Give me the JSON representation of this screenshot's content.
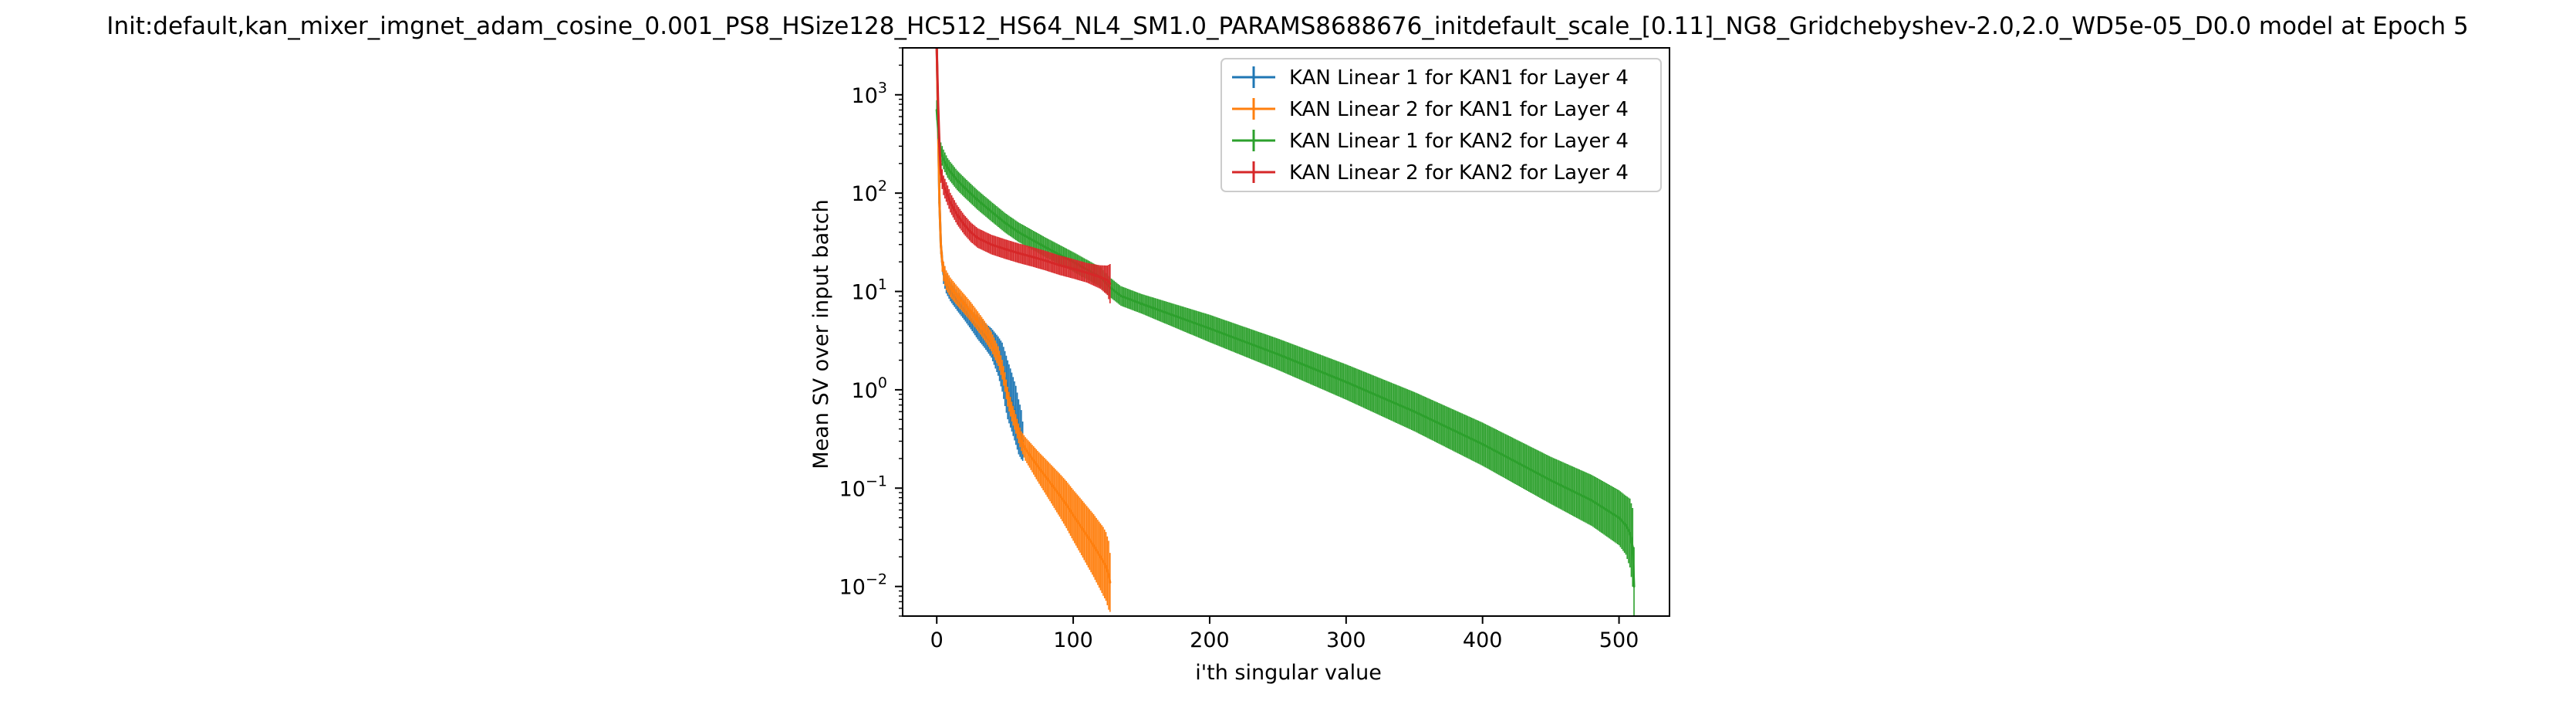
{
  "chart_data": {
    "type": "line",
    "title": "Init:default,kan_mixer_imgnet_adam_cosine_0.001_PS8_HSize128_HC512_HS64_NL4_SM1.0_PARAMS8688676_initdefault_scale_[0.11]_NG8_Gridchebyshev-2.0,2.0_WD5e-05_D0.0 model at Epoch 5",
    "xlabel": "i'th singular value",
    "ylabel": "Mean SV over input batch",
    "xlim": [
      -25,
      537
    ],
    "ylim": [
      0.005,
      3000
    ],
    "yscale": "log",
    "xticks": [
      0,
      100,
      200,
      300,
      400,
      500
    ],
    "yticks": [
      0.01,
      0.1,
      1,
      10,
      100,
      1000
    ],
    "ytick_labels": [
      {
        "base": "10",
        "exp": "−2"
      },
      {
        "base": "10",
        "exp": "−1"
      },
      {
        "base": "10",
        "exp": "0"
      },
      {
        "base": "10",
        "exp": "1"
      },
      {
        "base": "10",
        "exp": "2"
      },
      {
        "base": "10",
        "exp": "3"
      }
    ],
    "grid": false,
    "legend_position": "top-right",
    "series": [
      {
        "name": "KAN Linear 1 for KAN1 for Layer 4",
        "color": "#1f77b4",
        "x": [
          0,
          1,
          2,
          3,
          4,
          5,
          7,
          10,
          15,
          20,
          25,
          30,
          35,
          40,
          45,
          48,
          50,
          52,
          55,
          58,
          60,
          62,
          63
        ],
        "y": [
          3000,
          500,
          80,
          30,
          20,
          15,
          12,
          10,
          8,
          6.5,
          5.2,
          4.3,
          3.6,
          3.0,
          2.2,
          1.7,
          1.3,
          1.0,
          0.75,
          0.55,
          0.42,
          0.35,
          0.3
        ],
        "err": [
          0.1,
          0.1,
          0.1,
          0.1,
          0.1,
          0.1,
          0.1,
          0.1,
          0.1,
          0.1,
          0.1,
          0.12,
          0.13,
          0.15,
          0.2,
          0.25,
          0.28,
          0.3,
          0.3,
          0.3,
          0.28,
          0.25,
          0.2
        ]
      },
      {
        "name": "KAN Linear 2 for KAN1 for Layer 4",
        "color": "#ff7f0e",
        "x": [
          0,
          1,
          2,
          3,
          4,
          5,
          7,
          10,
          15,
          20,
          25,
          30,
          35,
          40,
          45,
          48,
          50,
          52,
          55,
          58,
          60,
          62,
          65,
          70,
          75,
          80,
          85,
          90,
          95,
          100,
          105,
          110,
          115,
          120,
          122,
          124,
          126,
          127
        ],
        "y": [
          3000,
          500,
          80,
          30,
          20,
          16,
          13,
          11,
          9,
          7.5,
          6.2,
          5.0,
          4.0,
          3.1,
          2.2,
          1.6,
          1.2,
          0.85,
          0.6,
          0.45,
          0.36,
          0.3,
          0.25,
          0.2,
          0.16,
          0.13,
          0.105,
          0.085,
          0.068,
          0.053,
          0.042,
          0.033,
          0.026,
          0.02,
          0.018,
          0.016,
          0.013,
          0.011
        ],
        "err": [
          0.1,
          0.1,
          0.1,
          0.1,
          0.1,
          0.1,
          0.1,
          0.1,
          0.1,
          0.1,
          0.1,
          0.1,
          0.1,
          0.1,
          0.1,
          0.1,
          0.1,
          0.1,
          0.1,
          0.1,
          0.1,
          0.1,
          0.12,
          0.14,
          0.16,
          0.18,
          0.2,
          0.22,
          0.24,
          0.26,
          0.28,
          0.3,
          0.32,
          0.34,
          0.35,
          0.35,
          0.35,
          0.3
        ]
      },
      {
        "name": "KAN Linear 1 for KAN2 for Layer 4",
        "color": "#2ca02c",
        "x": [
          0,
          1,
          2,
          3,
          5,
          8,
          10,
          15,
          20,
          30,
          40,
          50,
          60,
          80,
          100,
          120,
          127,
          135,
          150,
          200,
          250,
          300,
          350,
          400,
          450,
          480,
          500,
          505,
          508,
          510,
          511
        ],
        "y": [
          700,
          450,
          320,
          260,
          220,
          180,
          165,
          135,
          115,
          85,
          65,
          50,
          40,
          28,
          20,
          14,
          11,
          9,
          7.5,
          4.2,
          2.3,
          1.2,
          0.6,
          0.28,
          0.12,
          0.075,
          0.05,
          0.042,
          0.035,
          0.025,
          0.01
        ],
        "err": [
          0.1,
          0.1,
          0.1,
          0.1,
          0.1,
          0.1,
          0.1,
          0.1,
          0.1,
          0.1,
          0.1,
          0.1,
          0.1,
          0.1,
          0.1,
          0.1,
          0.1,
          0.1,
          0.1,
          0.14,
          0.16,
          0.18,
          0.2,
          0.22,
          0.24,
          0.26,
          0.28,
          0.3,
          0.35,
          0.4,
          0.4
        ]
      },
      {
        "name": "KAN Linear 2 for KAN2 for Layer 4",
        "color": "#d62728",
        "x": [
          0,
          1,
          2,
          3,
          5,
          8,
          10,
          15,
          20,
          25,
          30,
          40,
          50,
          60,
          70,
          80,
          90,
          100,
          110,
          120,
          125,
          127
        ],
        "y": [
          3000,
          800,
          300,
          160,
          120,
          95,
          80,
          60,
          48,
          40,
          35,
          30,
          27,
          24.5,
          22.5,
          20.5,
          18.5,
          17,
          15.5,
          14,
          13,
          12
        ],
        "err": [
          0.1,
          0.1,
          0.1,
          0.1,
          0.1,
          0.1,
          0.1,
          0.1,
          0.1,
          0.1,
          0.1,
          0.1,
          0.1,
          0.1,
          0.1,
          0.1,
          0.1,
          0.1,
          0.1,
          0.12,
          0.15,
          0.2
        ]
      }
    ]
  }
}
